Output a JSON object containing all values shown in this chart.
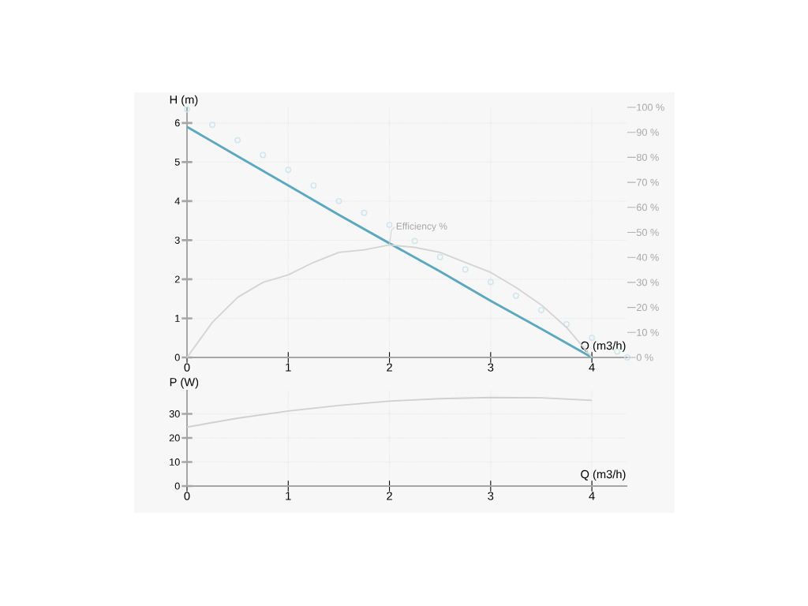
{
  "chart_data": [
    {
      "type": "line",
      "xlabel": "Q (m3/h)",
      "ylabel": "H (m)",
      "xlim": [
        0,
        4.35
      ],
      "ylim": [
        0,
        6.4
      ],
      "xticks": [
        0,
        1,
        2,
        3,
        4
      ],
      "yticks": [
        0,
        1,
        2,
        3,
        4,
        5,
        6
      ],
      "y2lim": [
        0,
        100
      ],
      "y2ticks": [
        {
          "value": 0,
          "label": "0 %"
        },
        {
          "value": 10,
          "label": "10 %"
        },
        {
          "value": 20,
          "label": "20 %"
        },
        {
          "value": 30,
          "label": "30 %"
        },
        {
          "value": 40,
          "label": "40 %"
        },
        {
          "value": 50,
          "label": "50 %"
        },
        {
          "value": 60,
          "label": "60 %"
        },
        {
          "value": 70,
          "label": "70 %"
        },
        {
          "value": 80,
          "label": "80 %"
        },
        {
          "value": 90,
          "label": "90 %"
        },
        {
          "value": 100,
          "label": "100 %"
        }
      ],
      "grid": true,
      "series": [
        {
          "type": "scatter",
          "marker": "circle",
          "color": "#cfe6ee",
          "x": [
            0,
            0.25,
            0.5,
            0.75,
            1,
            1.25,
            1.5,
            1.75,
            2,
            2.25,
            2.5,
            2.75,
            3,
            3.25,
            3.5,
            3.75,
            4,
            4.25,
            4.35
          ],
          "values": [
            6.35,
            5.95,
            5.56,
            5.18,
            4.8,
            4.4,
            4.0,
            3.7,
            3.39,
            2.98,
            2.57,
            2.25,
            1.93,
            1.58,
            1.21,
            0.85,
            0.5,
            0.15,
            0
          ]
        },
        {
          "type": "line",
          "color": "#5ba8c0",
          "x": [
            0,
            0.5,
            1,
            1.5,
            2,
            2.5,
            3,
            3.5,
            4
          ],
          "values": [
            5.9,
            5.15,
            4.4,
            3.65,
            2.92,
            2.2,
            1.45,
            0.73,
            0
          ]
        },
        {
          "type": "line",
          "name": "Efficiency %",
          "axis": "y2",
          "color": "#d4d4d4",
          "x": [
            0,
            0.25,
            0.5,
            0.75,
            1,
            1.25,
            1.5,
            1.75,
            2,
            2.25,
            2.5,
            2.75,
            3,
            3.25,
            3.5,
            3.75,
            4
          ],
          "values": [
            0,
            14,
            24,
            30,
            33,
            38,
            42,
            43,
            45,
            44,
            42,
            38,
            34,
            28,
            21,
            12,
            0
          ]
        }
      ]
    },
    {
      "type": "line",
      "xlabel": "Q (m3/h)",
      "ylabel": "P (W)",
      "xlim": [
        0,
        4.35
      ],
      "ylim": [
        0,
        40
      ],
      "xticks": [
        0,
        1,
        2,
        3,
        4
      ],
      "yticks": [
        0,
        10,
        20,
        30
      ],
      "grid": true,
      "series": [
        {
          "type": "line",
          "color": "#d0d0d0",
          "x": [
            0,
            0.5,
            1,
            1.5,
            2,
            2.5,
            3,
            3.5,
            4
          ],
          "values": [
            24.5,
            28.2,
            31.2,
            33.5,
            35.3,
            36.3,
            36.8,
            36.7,
            35.6
          ]
        }
      ]
    }
  ]
}
